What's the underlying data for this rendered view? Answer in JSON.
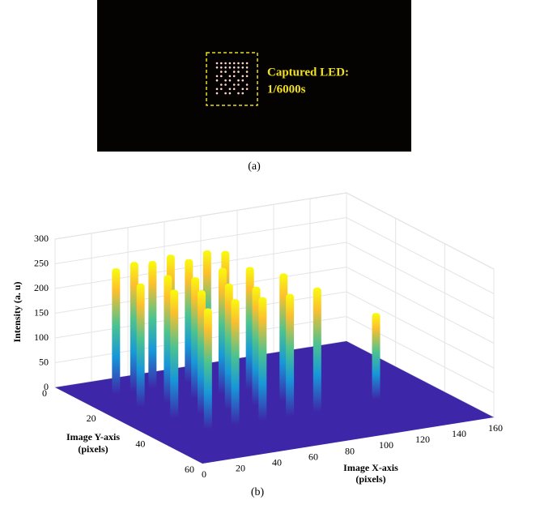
{
  "panel_a": {
    "caption": "(a)",
    "annotation": [
      "Captured LED:",
      "1/6000s"
    ]
  },
  "chart_data": {
    "type": "surface",
    "caption": "(b)",
    "zlabel": "Intensity  (a. u)",
    "ylabel": [
      "Image Y-axis",
      "(pixels)"
    ],
    "xlabel": [
      "Image X-axis",
      "(pixels)"
    ],
    "xlim": [
      0,
      160
    ],
    "xticks": [
      0,
      20,
      40,
      60,
      80,
      100,
      120,
      140,
      160
    ],
    "ylim": [
      0,
      60
    ],
    "yticks": [
      0,
      20,
      40,
      60
    ],
    "zlim": [
      0,
      300
    ],
    "zticks": [
      0,
      50,
      100,
      150,
      200,
      250,
      300
    ],
    "grid": true,
    "x": [
      20,
      30,
      40,
      50,
      60,
      70,
      80,
      20,
      35,
      50,
      65,
      80,
      25,
      40,
      55,
      70,
      85,
      125,
      30,
      45,
      60,
      75,
      90
    ],
    "y": [
      10,
      10,
      10,
      10,
      10,
      10,
      10,
      20,
      20,
      20,
      20,
      20,
      30,
      30,
      30,
      30,
      30,
      38,
      40,
      40,
      40,
      40,
      40
    ],
    "values": [
      255,
      262,
      258,
      265,
      250,
      262,
      255,
      250,
      258,
      245,
      255,
      248,
      260,
      250,
      255,
      240,
      258,
      175,
      245,
      255,
      250,
      248,
      252
    ]
  }
}
